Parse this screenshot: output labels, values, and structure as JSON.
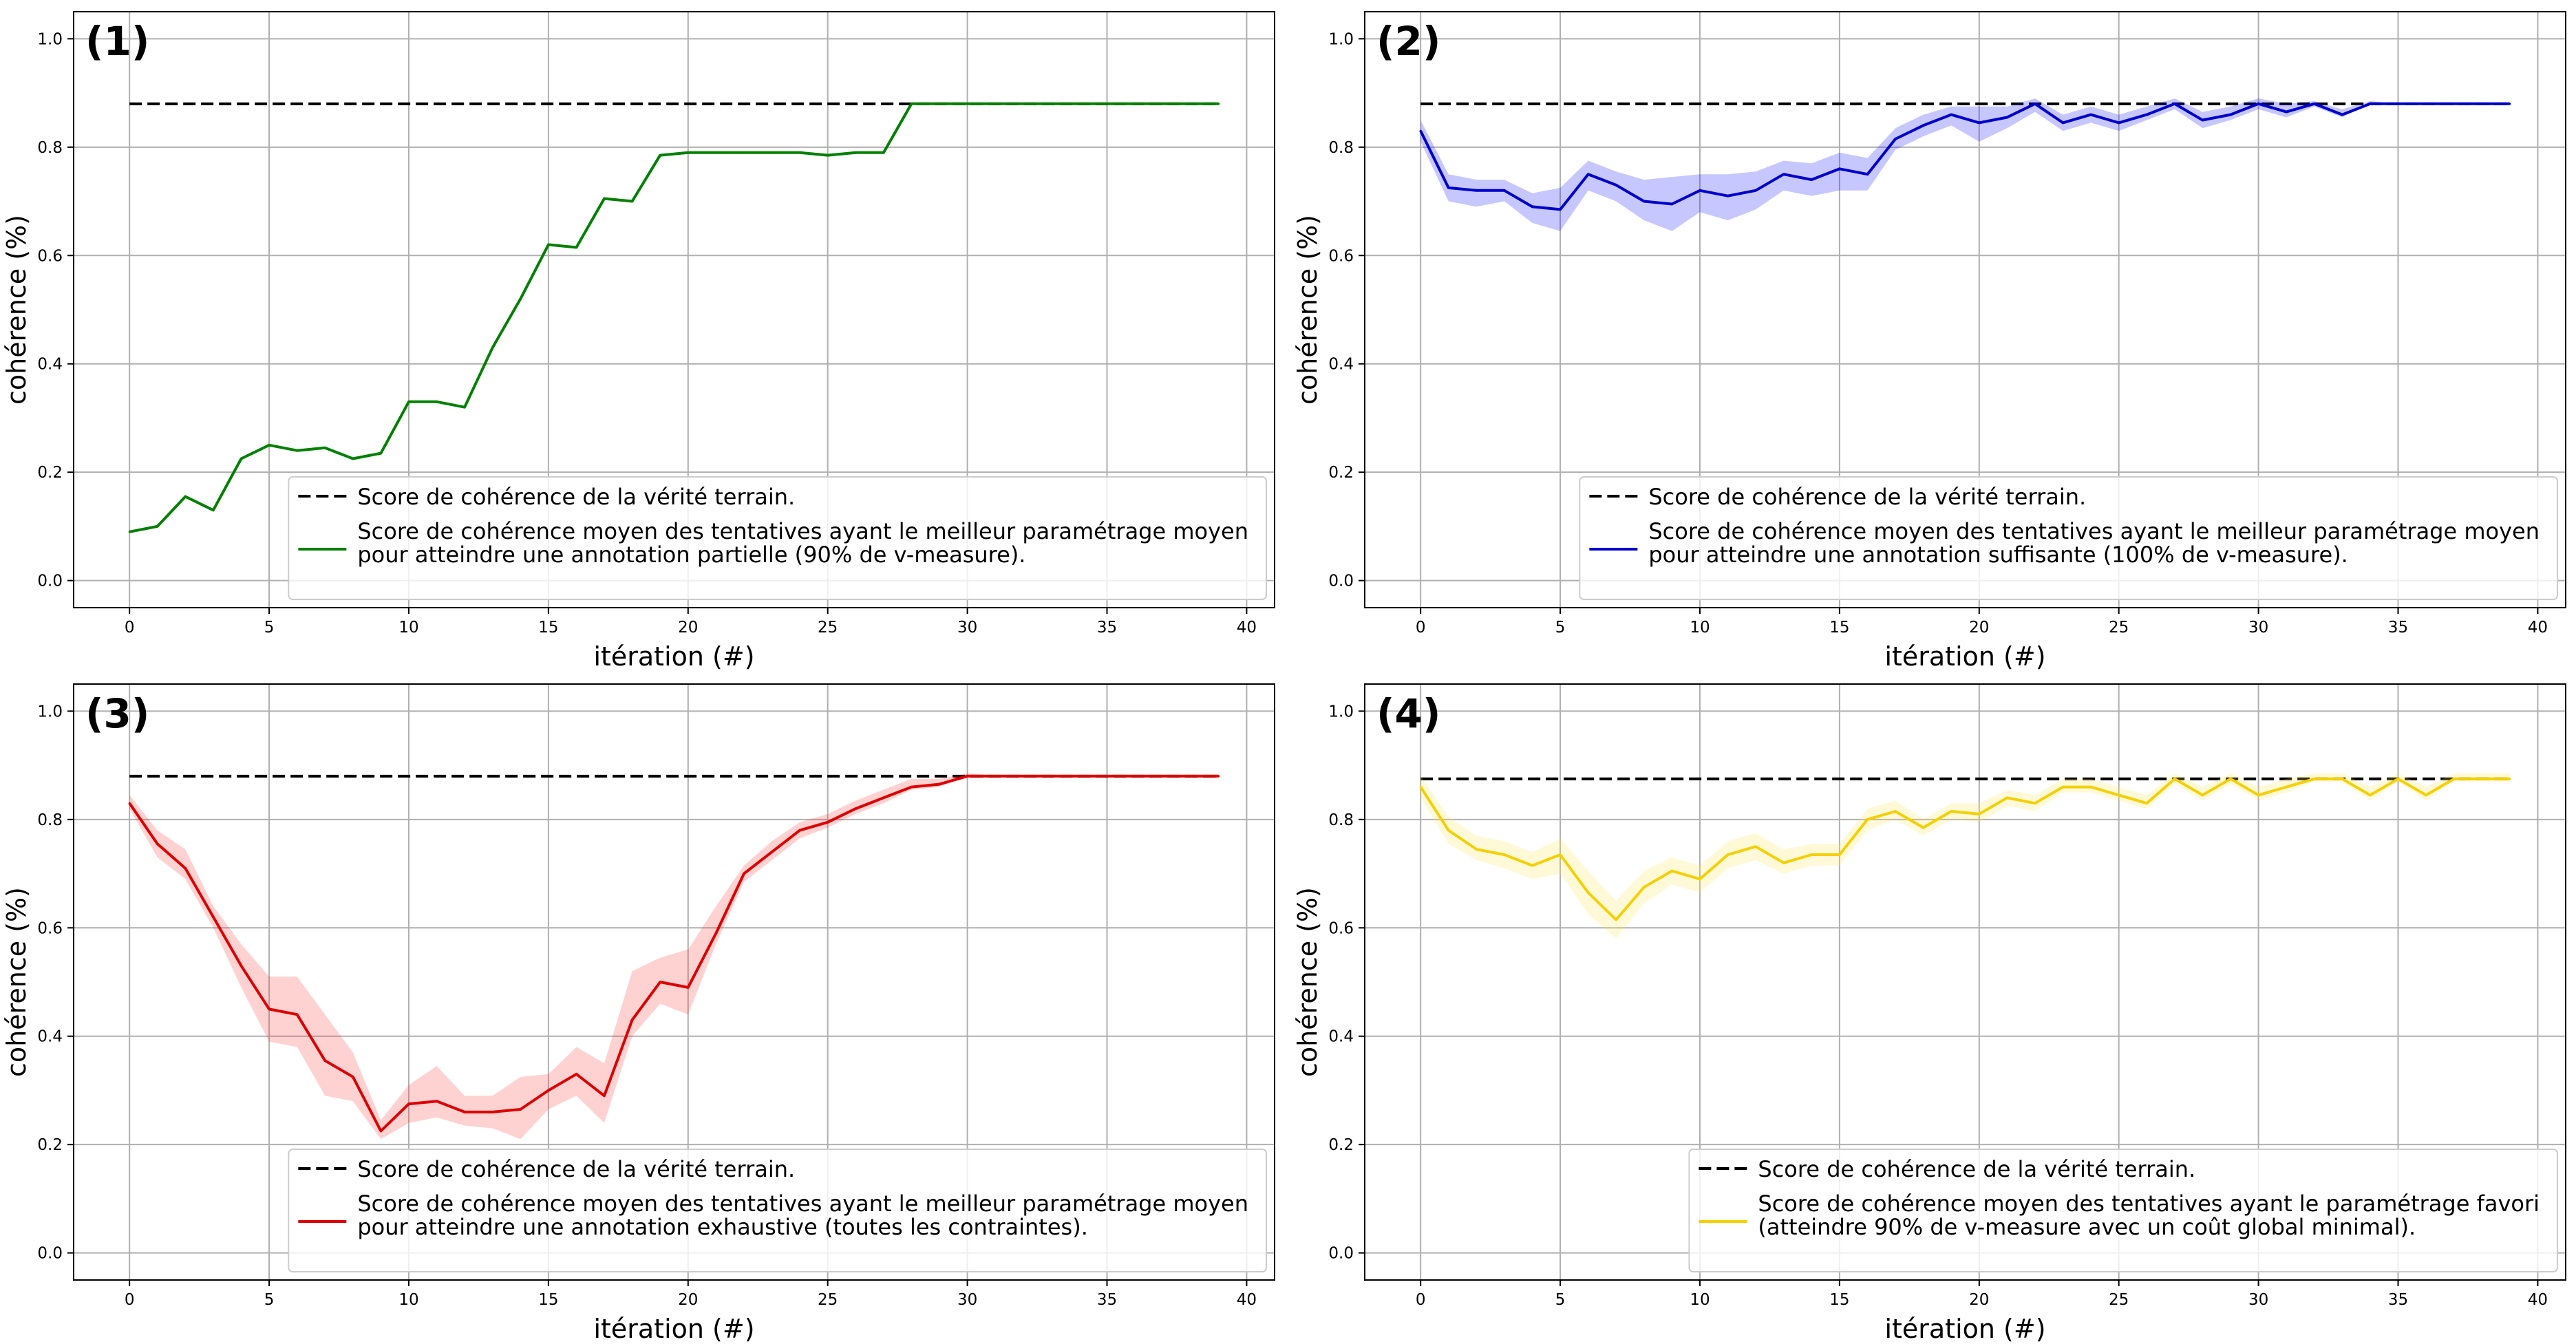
{
  "chart_data": [
    {
      "type": "line",
      "panel_label": "(1)",
      "xlabel": "itération (#)",
      "ylabel": "cohérence (%)",
      "xlim": [
        -2,
        41
      ],
      "ylim": [
        -0.05,
        1.05
      ],
      "xticks": [
        0,
        5,
        10,
        15,
        20,
        25,
        30,
        35,
        40
      ],
      "yticks": [
        0.0,
        0.2,
        0.4,
        0.6,
        0.8,
        1.0
      ],
      "grid": true,
      "legend_position": "lower-right",
      "reference": {
        "name": "Score de cohérence de la vérité terrain.",
        "y": 0.88,
        "x_start": 0,
        "x_end": 39,
        "color": "#000000",
        "style": "dashed"
      },
      "series": [
        {
          "name_lines": [
            "Score de cohérence moyen des tentatives ayant le meilleur paramétrage moyen",
            "pour atteindre une annotation partielle (90% de v-measure)."
          ],
          "color": "#008000",
          "x": [
            0,
            1,
            2,
            3,
            4,
            5,
            6,
            7,
            8,
            9,
            10,
            11,
            12,
            13,
            14,
            15,
            16,
            17,
            18,
            19,
            20,
            21,
            22,
            23,
            24,
            25,
            26,
            27,
            28,
            29,
            30,
            31,
            32,
            33,
            34,
            35,
            36,
            37,
            38,
            39
          ],
          "values": [
            0.09,
            0.1,
            0.155,
            0.13,
            0.225,
            0.25,
            0.24,
            0.245,
            0.225,
            0.235,
            0.33,
            0.33,
            0.32,
            0.43,
            0.52,
            0.62,
            0.615,
            0.705,
            0.7,
            0.785,
            0.79,
            0.79,
            0.79,
            0.79,
            0.79,
            0.785,
            0.79,
            0.79,
            0.88,
            0.88,
            0.88,
            0.88,
            0.88,
            0.88,
            0.88,
            0.88,
            0.88,
            0.88,
            0.88,
            0.88
          ]
        }
      ]
    },
    {
      "type": "line",
      "panel_label": "(2)",
      "xlabel": "itération (#)",
      "ylabel": "cohérence (%)",
      "xlim": [
        -2,
        41
      ],
      "ylim": [
        -0.05,
        1.05
      ],
      "xticks": [
        0,
        5,
        10,
        15,
        20,
        25,
        30,
        35,
        40
      ],
      "yticks": [
        0.0,
        0.2,
        0.4,
        0.6,
        0.8,
        1.0
      ],
      "grid": true,
      "legend_position": "lower-right",
      "reference": {
        "name": "Score de cohérence de la vérité terrain.",
        "y": 0.88,
        "x_start": 0,
        "x_end": 39,
        "color": "#000000",
        "style": "dashed"
      },
      "series": [
        {
          "name_lines": [
            "Score de cohérence moyen des tentatives ayant le meilleur paramétrage moyen",
            "pour atteindre une annotation suffisante (100% de v-measure)."
          ],
          "color": "#0000cc",
          "band_color": "#0000ff",
          "x": [
            0,
            1,
            2,
            3,
            4,
            5,
            6,
            7,
            8,
            9,
            10,
            11,
            12,
            13,
            14,
            15,
            16,
            17,
            18,
            19,
            20,
            21,
            22,
            23,
            24,
            25,
            26,
            27,
            28,
            29,
            30,
            31,
            32,
            33,
            34,
            35,
            36,
            37,
            38,
            39
          ],
          "values": [
            0.83,
            0.725,
            0.72,
            0.72,
            0.69,
            0.685,
            0.75,
            0.73,
            0.7,
            0.695,
            0.72,
            0.71,
            0.72,
            0.75,
            0.74,
            0.76,
            0.75,
            0.815,
            0.84,
            0.86,
            0.845,
            0.855,
            0.88,
            0.845,
            0.86,
            0.845,
            0.86,
            0.88,
            0.85,
            0.86,
            0.88,
            0.865,
            0.88,
            0.86,
            0.88,
            0.88,
            0.88,
            0.88,
            0.88,
            0.88
          ],
          "lower": [
            0.81,
            0.7,
            0.69,
            0.7,
            0.66,
            0.645,
            0.72,
            0.7,
            0.665,
            0.645,
            0.68,
            0.665,
            0.685,
            0.72,
            0.71,
            0.72,
            0.72,
            0.795,
            0.82,
            0.84,
            0.81,
            0.835,
            0.865,
            0.83,
            0.845,
            0.83,
            0.85,
            0.87,
            0.835,
            0.85,
            0.87,
            0.855,
            0.875,
            0.855,
            0.88,
            0.88,
            0.88,
            0.88,
            0.88,
            0.88
          ],
          "upper": [
            0.85,
            0.75,
            0.74,
            0.74,
            0.715,
            0.725,
            0.775,
            0.755,
            0.74,
            0.745,
            0.75,
            0.75,
            0.755,
            0.775,
            0.77,
            0.79,
            0.78,
            0.835,
            0.86,
            0.875,
            0.875,
            0.875,
            0.89,
            0.86,
            0.875,
            0.86,
            0.875,
            0.89,
            0.865,
            0.875,
            0.89,
            0.88,
            0.885,
            0.87,
            0.885,
            0.88,
            0.88,
            0.88,
            0.88,
            0.88
          ]
        }
      ]
    },
    {
      "type": "line",
      "panel_label": "(3)",
      "xlabel": "itération (#)",
      "ylabel": "cohérence (%)",
      "xlim": [
        -2,
        41
      ],
      "ylim": [
        -0.05,
        1.05
      ],
      "xticks": [
        0,
        5,
        10,
        15,
        20,
        25,
        30,
        35,
        40
      ],
      "yticks": [
        0.0,
        0.2,
        0.4,
        0.6,
        0.8,
        1.0
      ],
      "grid": true,
      "legend_position": "lower-right",
      "reference": {
        "name": "Score de cohérence de la vérité terrain.",
        "y": 0.88,
        "x_start": 0,
        "x_end": 39,
        "color": "#000000",
        "style": "dashed"
      },
      "series": [
        {
          "name_lines": [
            "Score de cohérence moyen des tentatives ayant le meilleur paramétrage moyen",
            "pour atteindre une annotation exhaustive (toutes les contraintes)."
          ],
          "color": "#dd0000",
          "band_color": "#ff3333",
          "x": [
            0,
            1,
            2,
            3,
            4,
            5,
            6,
            7,
            8,
            9,
            10,
            11,
            12,
            13,
            14,
            15,
            16,
            17,
            18,
            19,
            20,
            21,
            22,
            23,
            24,
            25,
            26,
            27,
            28,
            29,
            30,
            31,
            32,
            33,
            34,
            35,
            36,
            37,
            38,
            39
          ],
          "values": [
            0.83,
            0.755,
            0.71,
            0.62,
            0.53,
            0.45,
            0.44,
            0.355,
            0.325,
            0.225,
            0.275,
            0.28,
            0.26,
            0.26,
            0.265,
            0.3,
            0.33,
            0.29,
            0.43,
            0.5,
            0.49,
            0.59,
            0.7,
            0.74,
            0.78,
            0.795,
            0.82,
            0.84,
            0.86,
            0.865,
            0.88,
            0.88,
            0.88,
            0.88,
            0.88,
            0.88,
            0.88,
            0.88,
            0.88,
            0.88
          ],
          "lower": [
            0.82,
            0.73,
            0.69,
            0.6,
            0.49,
            0.39,
            0.38,
            0.29,
            0.28,
            0.21,
            0.24,
            0.25,
            0.235,
            0.23,
            0.21,
            0.265,
            0.29,
            0.24,
            0.4,
            0.46,
            0.44,
            0.57,
            0.685,
            0.725,
            0.765,
            0.785,
            0.81,
            0.83,
            0.855,
            0.86,
            0.88,
            0.88,
            0.88,
            0.88,
            0.88,
            0.88,
            0.88,
            0.88,
            0.88,
            0.88
          ],
          "upper": [
            0.845,
            0.78,
            0.745,
            0.64,
            0.57,
            0.51,
            0.51,
            0.44,
            0.37,
            0.245,
            0.31,
            0.345,
            0.29,
            0.29,
            0.325,
            0.33,
            0.38,
            0.35,
            0.52,
            0.545,
            0.56,
            0.64,
            0.715,
            0.76,
            0.795,
            0.81,
            0.835,
            0.855,
            0.875,
            0.875,
            0.885,
            0.88,
            0.88,
            0.88,
            0.88,
            0.88,
            0.88,
            0.88,
            0.88,
            0.88
          ]
        }
      ]
    },
    {
      "type": "line",
      "panel_label": "(4)",
      "xlabel": "itération (#)",
      "ylabel": "cohérence (%)",
      "xlim": [
        -2,
        41
      ],
      "ylim": [
        -0.05,
        1.05
      ],
      "xticks": [
        0,
        5,
        10,
        15,
        20,
        25,
        30,
        35,
        40
      ],
      "yticks": [
        0.0,
        0.2,
        0.4,
        0.6,
        0.8,
        1.0
      ],
      "grid": true,
      "legend_position": "lower-right",
      "reference": {
        "name": "Score de cohérence de la vérité terrain.",
        "y": 0.875,
        "x_start": 0,
        "x_end": 39,
        "color": "#000000",
        "style": "dashed"
      },
      "series": [
        {
          "name_lines": [
            "Score de cohérence moyen des tentatives ayant le paramétrage favori",
            "(atteindre 90% de v-measure avec un coût global minimal)."
          ],
          "color": "#f5d000",
          "band_color": "#ffe44d",
          "x": [
            0,
            1,
            2,
            3,
            4,
            5,
            6,
            7,
            8,
            9,
            10,
            11,
            12,
            13,
            14,
            15,
            16,
            17,
            18,
            19,
            20,
            21,
            22,
            23,
            24,
            25,
            26,
            27,
            28,
            29,
            30,
            31,
            32,
            33,
            34,
            35,
            36,
            37,
            38,
            39
          ],
          "values": [
            0.86,
            0.78,
            0.745,
            0.735,
            0.715,
            0.735,
            0.665,
            0.615,
            0.675,
            0.705,
            0.69,
            0.735,
            0.75,
            0.72,
            0.735,
            0.735,
            0.8,
            0.815,
            0.785,
            0.815,
            0.81,
            0.84,
            0.83,
            0.86,
            0.86,
            0.845,
            0.83,
            0.875,
            0.845,
            0.875,
            0.845,
            0.86,
            0.875,
            0.875,
            0.845,
            0.875,
            0.845,
            0.875,
            0.875,
            0.875
          ],
          "lower": [
            0.84,
            0.755,
            0.725,
            0.71,
            0.69,
            0.7,
            0.625,
            0.58,
            0.645,
            0.68,
            0.665,
            0.71,
            0.725,
            0.7,
            0.715,
            0.715,
            0.78,
            0.8,
            0.77,
            0.8,
            0.795,
            0.825,
            0.815,
            0.85,
            0.85,
            0.835,
            0.82,
            0.865,
            0.835,
            0.865,
            0.835,
            0.85,
            0.87,
            0.87,
            0.835,
            0.87,
            0.835,
            0.87,
            0.87,
            0.87
          ],
          "upper": [
            0.88,
            0.805,
            0.77,
            0.76,
            0.74,
            0.765,
            0.705,
            0.65,
            0.705,
            0.73,
            0.715,
            0.76,
            0.775,
            0.745,
            0.755,
            0.755,
            0.82,
            0.835,
            0.8,
            0.83,
            0.83,
            0.855,
            0.845,
            0.875,
            0.875,
            0.86,
            0.845,
            0.885,
            0.86,
            0.885,
            0.86,
            0.875,
            0.885,
            0.885,
            0.86,
            0.885,
            0.86,
            0.885,
            0.885,
            0.885
          ]
        }
      ]
    }
  ]
}
